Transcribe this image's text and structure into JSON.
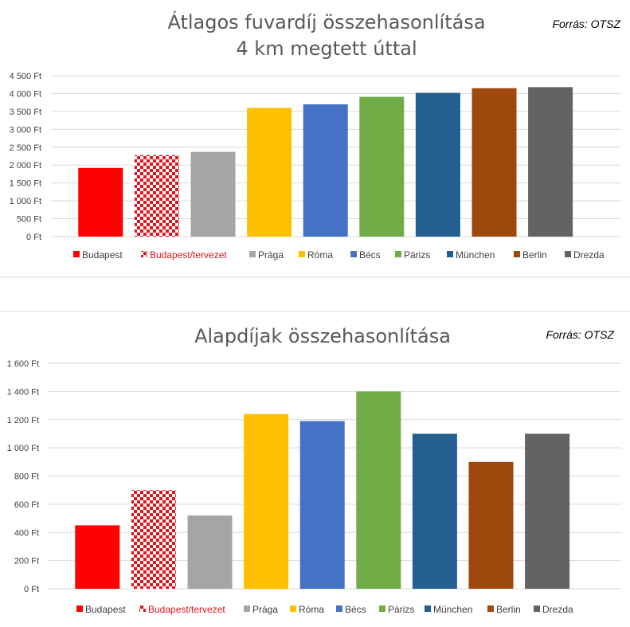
{
  "chart_data": [
    {
      "type": "bar",
      "title": "Átlagos fuvardíj összehasonlítása",
      "subtitle": "4 km megtett úttal",
      "source": "Forrás: OTSZ",
      "categories": [
        "Budapest",
        "Budapest/tervezet",
        "Prága",
        "Róma",
        "Bécs",
        "Párizs",
        "München",
        "Berlin",
        "Drezda"
      ],
      "values": [
        1920,
        2280,
        2370,
        3600,
        3700,
        3910,
        4020,
        4150,
        4180
      ],
      "colors": [
        "#ff0000",
        "checker-red",
        "#a5a5a5",
        "#ffc000",
        "#4472c4",
        "#70ad47",
        "#255e91",
        "#9e480e",
        "#636363"
      ],
      "ylim": [
        0,
        4500
      ],
      "yticks": [
        "4 500 Ft",
        "4 000 Ft",
        "3 500 Ft",
        "3 000 Ft",
        "2 500 Ft",
        "2 000 Ft",
        "1 500 Ft",
        "1 000 Ft",
        "500 Ft",
        "0 Ft"
      ],
      "grid": true,
      "legend_position": "bottom"
    },
    {
      "type": "bar",
      "title": "Alapdíjak összehasonlítása",
      "source": "Forrás: OTSZ",
      "categories": [
        "Budapest",
        "Budapest/tervezet",
        "Prága",
        "Róma",
        "Bécs",
        "Párizs",
        "München",
        "Berlin",
        "Drezda"
      ],
      "values": [
        450,
        700,
        520,
        1240,
        1190,
        1400,
        1100,
        900,
        1100
      ],
      "colors": [
        "#ff0000",
        "checker-red",
        "#a5a5a5",
        "#ffc000",
        "#4472c4",
        "#70ad47",
        "#255e91",
        "#9e480e",
        "#636363"
      ],
      "ylim": [
        0,
        1600
      ],
      "yticks": [
        "1 600 Ft",
        "1 400 Ft",
        "1 200 Ft",
        "1 000 Ft",
        "800 Ft",
        "600 Ft",
        "400 Ft",
        "200 Ft",
        "0 Ft"
      ],
      "grid": true,
      "legend_position": "bottom"
    }
  ]
}
